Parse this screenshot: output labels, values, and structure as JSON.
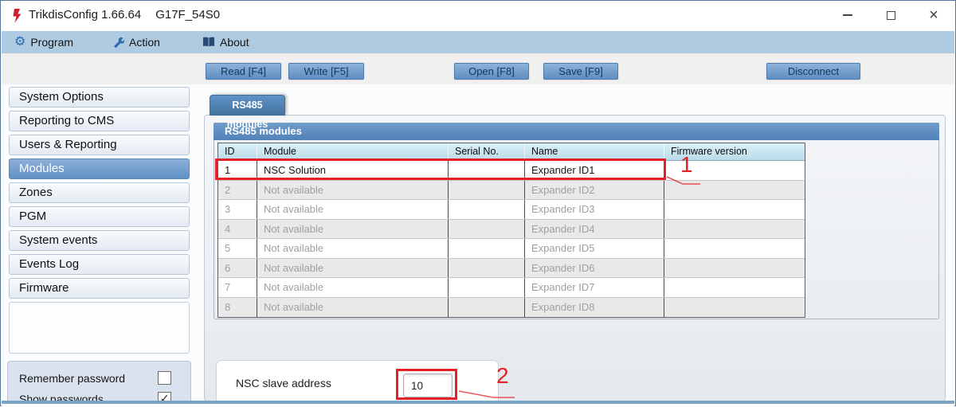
{
  "window": {
    "title": "TrikdisConfig 1.66.64",
    "device": "G17F_54S0"
  },
  "menubar": {
    "program": "Program",
    "action": "Action",
    "about": "About"
  },
  "toolbar": {
    "read": "Read [F4]",
    "write": "Write [F5]",
    "open": "Open [F8]",
    "save": "Save [F9]",
    "disconnect": "Disconnect"
  },
  "sidebar": {
    "items": [
      "System Options",
      "Reporting to CMS",
      "Users & Reporting",
      "Modules",
      "Zones",
      "PGM",
      "System events",
      "Events Log",
      "Firmware"
    ],
    "selected_index": 3,
    "remember_password_label": "Remember password",
    "remember_password_checked": false,
    "show_passwords_label": "Show passwords",
    "show_passwords_checked": true
  },
  "content": {
    "tab_label": "RS485 modules",
    "group_title": "RS485 modules",
    "table": {
      "columns": [
        "ID",
        "Module",
        "Serial No.",
        "Name",
        "Firmware version"
      ],
      "rows": [
        {
          "id": "1",
          "module": "NSC Solution",
          "serial": "",
          "name": "Expander ID1",
          "firmware": "",
          "available": true
        },
        {
          "id": "2",
          "module": "Not available",
          "serial": "",
          "name": "Expander ID2",
          "firmware": "",
          "available": false
        },
        {
          "id": "3",
          "module": "Not available",
          "serial": "",
          "name": "Expander ID3",
          "firmware": "",
          "available": false
        },
        {
          "id": "4",
          "module": "Not available",
          "serial": "",
          "name": "Expander ID4",
          "firmware": "",
          "available": false
        },
        {
          "id": "5",
          "module": "Not available",
          "serial": "",
          "name": "Expander ID5",
          "firmware": "",
          "available": false
        },
        {
          "id": "6",
          "module": "Not available",
          "serial": "",
          "name": "Expander ID6",
          "firmware": "",
          "available": false
        },
        {
          "id": "7",
          "module": "Not available",
          "serial": "",
          "name": "Expander ID7",
          "firmware": "",
          "available": false
        },
        {
          "id": "8",
          "module": "Not available",
          "serial": "",
          "name": "Expander ID8",
          "firmware": "",
          "available": false
        }
      ]
    },
    "form": {
      "nsc_label": "NSC slave address",
      "nsc_value": "10"
    }
  },
  "annotations": {
    "callout1": "1",
    "callout2": "2",
    "color": "#e32127"
  },
  "icons": {
    "check": "✓",
    "close": "×",
    "gear": "⚙"
  },
  "colors": {
    "menu_blue": "#aecbe1",
    "accent_blue": "#5b8ec4",
    "header_cyan": "#cfe9f2",
    "selected_item": "#6f9bd0",
    "bottom_line": "#7aa4c5"
  }
}
